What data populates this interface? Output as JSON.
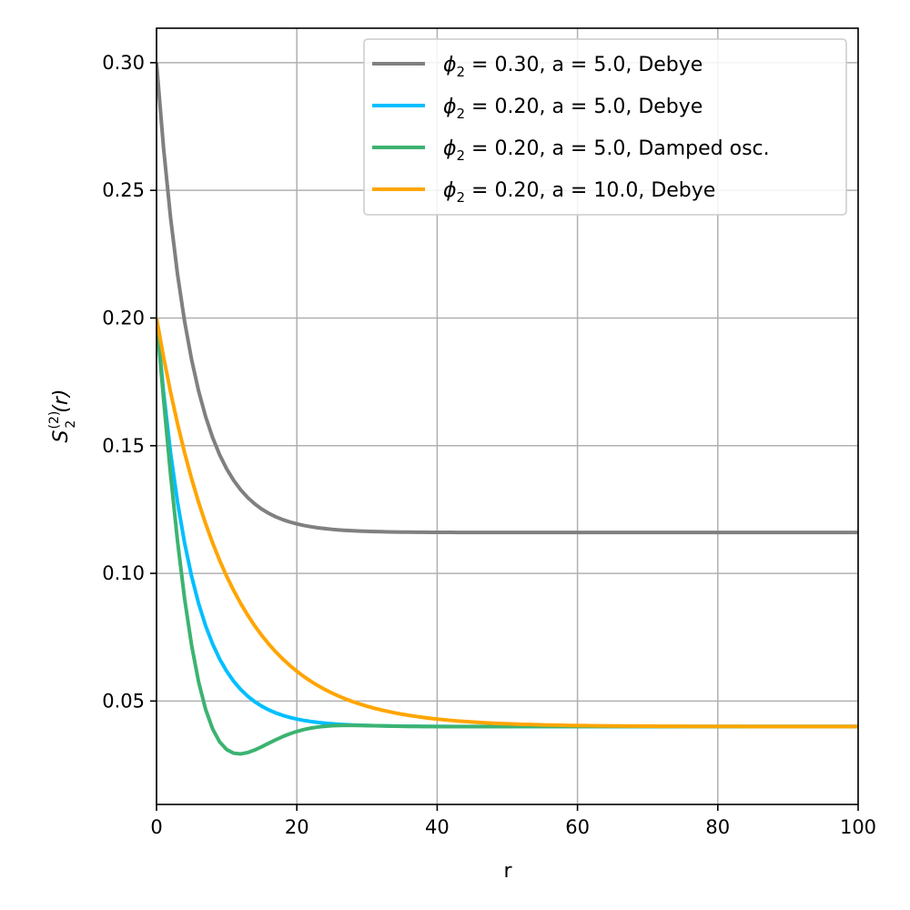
{
  "chart_data": {
    "type": "line",
    "xlabel": "r",
    "ylabel_main": "S",
    "ylabel_sub": "2",
    "ylabel_sup": "(2)",
    "ylabel_arg": "(r)",
    "xlim": [
      0,
      100
    ],
    "ylim": [
      0.0095,
      0.3135
    ],
    "x_ticks": [
      0,
      20,
      40,
      60,
      80,
      100
    ],
    "x_tick_labels": [
      "0",
      "20",
      "40",
      "60",
      "80",
      "100"
    ],
    "y_ticks": [
      0.05,
      0.1,
      0.15,
      0.2,
      0.25,
      0.3
    ],
    "y_tick_labels": [
      "0.05",
      "0.10",
      "0.15",
      "0.20",
      "0.25",
      "0.30"
    ],
    "grid": true,
    "legend_position": "top-right",
    "series": [
      {
        "name": "ϕ2 = 0.30, a = 5.0, Debye",
        "legend": {
          "phi": "ϕ",
          "sub": "2",
          "rest": " = 0.30, a = 5.0, Debye"
        },
        "color": "#808080",
        "model": "debye",
        "phi": 0.3,
        "a": 5.0,
        "x": [
          0,
          2,
          4,
          6,
          8,
          10,
          12,
          14,
          16,
          18,
          20,
          25,
          30,
          40,
          60,
          80,
          100
        ],
        "y": [
          0.3,
          0.2362,
          0.1945,
          0.1672,
          0.1494,
          0.1378,
          0.1301,
          0.1251,
          0.1219,
          0.1197,
          0.1184,
          0.1168,
          0.1163,
          0.1161,
          0.116,
          0.116,
          0.116
        ]
      },
      {
        "name": "ϕ2 = 0.20, a = 5.0, Debye",
        "legend": {
          "phi": "ϕ",
          "sub": "2",
          "rest": " = 0.20, a = 5.0, Debye"
        },
        "color": "#00bfff",
        "model": "debye",
        "phi": 0.2,
        "a": 5.0,
        "x": [
          0,
          2,
          4,
          6,
          8,
          10,
          15,
          20,
          25,
          30,
          40,
          60,
          100
        ],
        "y": [
          0.2,
          0.1476,
          0.1124,
          0.089,
          0.0732,
          0.0629,
          0.046,
          0.04,
          0.04,
          0.04,
          0.04,
          0.04,
          0.04
        ]
      },
      {
        "name": "ϕ2 = 0.20, a = 5.0, Damped osc.",
        "legend": {
          "phi": "ϕ",
          "sub": "2",
          "rest": " = 0.20, a = 5.0, Damped osc."
        },
        "color": "#3cb371",
        "model": "damped",
        "phi": 0.2,
        "a": 5.0,
        "x": [
          0,
          2,
          4,
          6,
          8,
          10,
          12,
          15,
          20,
          25,
          30,
          40,
          100
        ],
        "y": [
          0.2,
          0.135,
          0.085,
          0.05,
          0.03,
          0.023,
          0.025,
          0.032,
          0.041,
          0.041,
          0.04,
          0.04,
          0.04
        ]
      },
      {
        "name": "ϕ2 = 0.20, a = 10.0, Debye",
        "legend": {
          "phi": "ϕ",
          "sub": "2",
          "rest": " = 0.20, a = 10.0, Debye"
        },
        "color": "#ffa500",
        "model": "debye",
        "phi": 0.2,
        "a": 10.0,
        "x": [
          0,
          5,
          10,
          15,
          20,
          30,
          40,
          60,
          80,
          100
        ],
        "y": [
          0.2,
          0.137,
          0.101,
          0.075,
          0.061,
          0.047,
          0.043,
          0.04,
          0.04,
          0.04
        ]
      }
    ]
  }
}
